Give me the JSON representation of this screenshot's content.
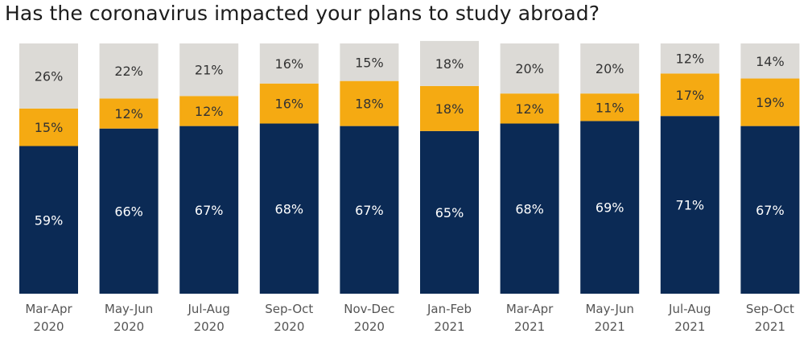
{
  "title": "Has the coronavirus impacted your plans to study abroad?",
  "colors": {
    "bottom": "#0b2a55",
    "middle": "#f5aa12",
    "top": "#dcdad6",
    "bottom_text": "#ffffff",
    "other_text": "#333333"
  },
  "chart_data": {
    "type": "bar",
    "stacked": true,
    "title": "Has the coronavirus impacted your plans to study abroad?",
    "categories": [
      [
        "Mar-Apr",
        "2020"
      ],
      [
        "May-Jun",
        "2020"
      ],
      [
        "Jul-Aug",
        "2020"
      ],
      [
        "Sep-Oct",
        "2020"
      ],
      [
        "Nov-Dec",
        "2020"
      ],
      [
        "Jan-Feb",
        "2021"
      ],
      [
        "Mar-Apr",
        "2021"
      ],
      [
        "May-Jun",
        "2021"
      ],
      [
        "Jul-Aug",
        "2021"
      ],
      [
        "Sep-Oct",
        "2021"
      ]
    ],
    "series": [
      {
        "values": [
          59,
          66,
          67,
          68,
          67,
          65,
          68,
          69,
          71,
          67
        ]
      },
      {
        "values": [
          15,
          12,
          12,
          16,
          18,
          18,
          12,
          11,
          17,
          19
        ]
      },
      {
        "values": [
          26,
          22,
          21,
          16,
          15,
          18,
          20,
          20,
          12,
          14
        ]
      }
    ],
    "value_suffix": "%",
    "ylim": [
      0,
      100
    ],
    "legend": "none",
    "grid": false
  }
}
